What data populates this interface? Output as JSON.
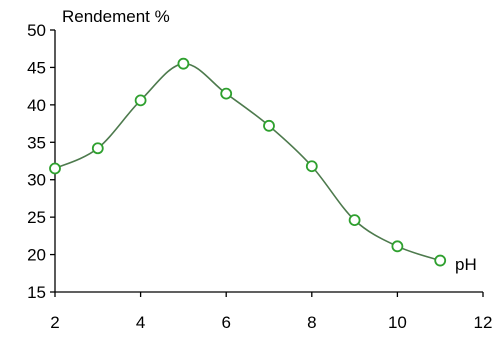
{
  "chart_data": {
    "type": "line",
    "title": "",
    "ylabel": "Rendement %",
    "xlabel": "pH",
    "xlim": [
      2,
      12
    ],
    "ylim": [
      15,
      50
    ],
    "xticks": [
      2,
      4,
      6,
      8,
      10,
      12
    ],
    "yticks": [
      15,
      20,
      25,
      30,
      35,
      40,
      45,
      50
    ],
    "grid": false,
    "legend": "none",
    "series": [
      {
        "x": [
          2,
          3,
          4,
          5,
          6,
          7,
          8,
          9,
          10,
          11
        ],
        "y": [
          31.5,
          34.2,
          40.6,
          45.5,
          41.5,
          37.2,
          31.8,
          24.6,
          21.1,
          19.2
        ],
        "line_color": "#4d7a4d",
        "marker": "circle",
        "marker_edge_color": "#2ea02e",
        "marker_face_color": "#ffffff"
      }
    ]
  }
}
